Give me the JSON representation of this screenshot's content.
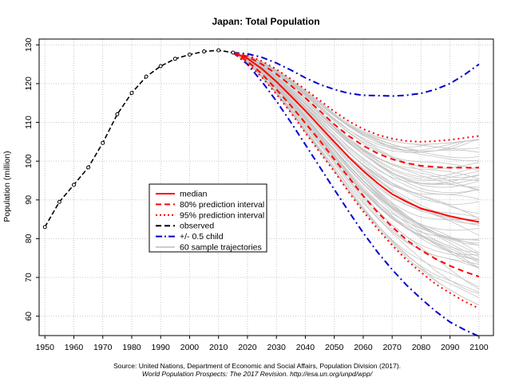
{
  "chart_data": {
    "type": "line",
    "title": "Japan: Total Population",
    "ylabel": "Population (million)",
    "xlabel": "",
    "xlim": [
      1948,
      2105
    ],
    "ylim": [
      55,
      131.5
    ],
    "x_ticks": [
      1950,
      1960,
      1970,
      1980,
      1990,
      2000,
      2010,
      2020,
      2030,
      2040,
      2050,
      2060,
      2070,
      2080,
      2090,
      2100
    ],
    "x_tick_labels": [
      "1950",
      "1960",
      "1970",
      "1980",
      "1990",
      "2000",
      "2010",
      "2020",
      "2030",
      "2040",
      "2050",
      "2060",
      "2070",
      "2080",
      "2090",
      "2100"
    ],
    "y_ticks": [
      60,
      70,
      80,
      90,
      100,
      110,
      120,
      130
    ],
    "y_tick_labels": [
      "60",
      "70",
      "80",
      "90",
      "100",
      "110",
      "120",
      "130"
    ],
    "grid": true,
    "legend": {
      "position": "center-left",
      "entries": [
        {
          "label": "median",
          "color": "#ff0000",
          "style": "solid"
        },
        {
          "label": "80% prediction interval",
          "color": "#ff0000",
          "style": "dashed"
        },
        {
          "label": "95% prediction interval",
          "color": "#ff0000",
          "style": "dotted"
        },
        {
          "label": "observed",
          "color": "#000000",
          "style": "dashed"
        },
        {
          "label": "+/- 0.5 child",
          "color": "#0000cc",
          "style": "dashdot"
        },
        {
          "label": "60 sample trajectories",
          "color": "#bbbbbb",
          "style": "solid"
        }
      ]
    },
    "series": [
      {
        "name": "observed",
        "color": "#000000",
        "x": [
          1950,
          1955,
          1960,
          1965,
          1970,
          1975,
          1980,
          1985,
          1990,
          1995,
          2000,
          2005,
          2010,
          2015
        ],
        "values": [
          83.0,
          89.5,
          93.9,
          98.4,
          104.7,
          112.1,
          117.6,
          121.8,
          124.5,
          126.4,
          127.5,
          128.3,
          128.6,
          128.0
        ]
      },
      {
        "name": "median",
        "color": "#ff0000",
        "x": [
          2015,
          2020,
          2025,
          2030,
          2035,
          2040,
          2045,
          2050,
          2055,
          2060,
          2065,
          2070,
          2075,
          2080,
          2085,
          2090,
          2095,
          2100
        ],
        "values": [
          128.0,
          126.5,
          123.8,
          120.5,
          116.8,
          113.0,
          109.0,
          105.0,
          101.0,
          97.5,
          94.3,
          91.5,
          89.5,
          87.8,
          86.8,
          85.8,
          85.0,
          84.3
        ]
      },
      {
        "name": "80% lower",
        "color": "#ff0000",
        "x": [
          2015,
          2020,
          2025,
          2030,
          2035,
          2040,
          2045,
          2050,
          2055,
          2060,
          2065,
          2070,
          2075,
          2080,
          2085,
          2090,
          2095,
          2100
        ],
        "values": [
          128.0,
          125.8,
          122.5,
          118.5,
          114.3,
          109.8,
          105.3,
          100.5,
          95.8,
          91.0,
          86.8,
          83.0,
          79.7,
          77.0,
          74.8,
          73.0,
          71.5,
          70.2
        ]
      },
      {
        "name": "80% upper",
        "color": "#ff0000",
        "x": [
          2015,
          2020,
          2025,
          2030,
          2035,
          2040,
          2045,
          2050,
          2055,
          2060,
          2065,
          2070,
          2075,
          2080,
          2085,
          2090,
          2095,
          2100
        ],
        "values": [
          128.0,
          127.0,
          125.0,
          122.5,
          119.5,
          116.3,
          113.0,
          109.5,
          106.5,
          104.0,
          102.0,
          100.5,
          99.5,
          98.8,
          98.5,
          98.3,
          98.3,
          98.3
        ]
      },
      {
        "name": "95% lower",
        "color": "#ff0000",
        "x": [
          2015,
          2020,
          2025,
          2030,
          2035,
          2040,
          2045,
          2050,
          2055,
          2060,
          2065,
          2070,
          2075,
          2080,
          2085,
          2090,
          2095,
          2100
        ],
        "values": [
          128.0,
          125.3,
          121.6,
          117.3,
          112.5,
          107.3,
          102.3,
          97.3,
          92.0,
          87.0,
          82.5,
          78.3,
          74.5,
          71.3,
          68.3,
          66.0,
          63.8,
          62.0
        ]
      },
      {
        "name": "95% upper",
        "color": "#ff0000",
        "x": [
          2015,
          2020,
          2025,
          2030,
          2035,
          2040,
          2045,
          2050,
          2055,
          2060,
          2065,
          2070,
          2075,
          2080,
          2085,
          2090,
          2095,
          2100
        ],
        "values": [
          128.0,
          127.3,
          125.8,
          123.7,
          121.2,
          118.5,
          115.7,
          112.8,
          110.3,
          108.3,
          106.8,
          105.8,
          105.2,
          105.0,
          105.2,
          105.5,
          106.0,
          106.5
        ]
      },
      {
        "name": "+0.5 child",
        "color": "#0000cc",
        "x": [
          2015,
          2020,
          2025,
          2030,
          2035,
          2040,
          2045,
          2050,
          2055,
          2060,
          2065,
          2070,
          2075,
          2080,
          2085,
          2090,
          2095,
          2100
        ],
        "values": [
          128.0,
          127.7,
          126.8,
          125.3,
          123.5,
          121.5,
          119.8,
          118.5,
          117.5,
          117.0,
          116.9,
          116.8,
          117.0,
          117.5,
          118.5,
          120.0,
          122.3,
          125.0
        ]
      },
      {
        "name": "-0.5 child",
        "color": "#0000cc",
        "x": [
          2015,
          2020,
          2025,
          2030,
          2035,
          2040,
          2045,
          2050,
          2055,
          2060,
          2065,
          2070,
          2075,
          2080,
          2085,
          2090,
          2095,
          2100
        ],
        "values": [
          128.0,
          125.0,
          120.5,
          115.5,
          110.0,
          104.3,
          98.5,
          92.7,
          87.0,
          81.5,
          76.5,
          72.0,
          68.0,
          64.5,
          61.3,
          58.5,
          56.5,
          54.8
        ]
      }
    ],
    "sample_trajectories": {
      "count": 60,
      "color": "#c0c0c0",
      "start_year": 2015,
      "end_year": 2100
    }
  },
  "source": {
    "line1": "Source: United Nations, Department of Economic and Social Affairs, Population Division (2017).",
    "line2": "World Population Prospects: The 2017 Revision. http://esa.un.org/unpd/wpp/"
  }
}
